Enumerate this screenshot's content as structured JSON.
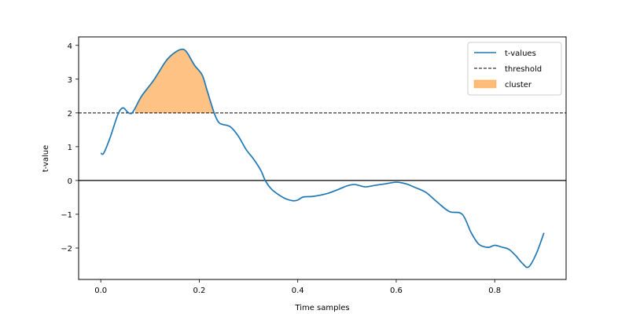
{
  "chart_data": {
    "type": "line",
    "title": "",
    "xlabel": "Time samples",
    "ylabel": "t-value",
    "xlim": [
      -0.045,
      0.945
    ],
    "ylim": [
      -2.93,
      4.25
    ],
    "xticks": [
      0.0,
      0.2,
      0.4,
      0.6,
      0.8
    ],
    "xtick_labels": [
      "0.0",
      "0.2",
      "0.4",
      "0.6",
      "0.8"
    ],
    "yticks": [
      -2,
      -1,
      0,
      1,
      2,
      3,
      4
    ],
    "ytick_labels": [
      "−2",
      "−1",
      "0",
      "1",
      "2",
      "3",
      "4"
    ],
    "grid": false,
    "legend_position": "upper right",
    "series": [
      {
        "name": "t-values",
        "kind": "line",
        "color": "#1f77b4",
        "x": [
          0.0,
          0.006,
          0.019,
          0.035,
          0.045,
          0.054,
          0.062,
          0.069,
          0.083,
          0.107,
          0.131,
          0.146,
          0.163,
          0.174,
          0.19,
          0.206,
          0.216,
          0.23,
          0.239,
          0.247,
          0.263,
          0.279,
          0.295,
          0.311,
          0.325,
          0.334,
          0.345,
          0.358,
          0.374,
          0.39,
          0.4,
          0.411,
          0.432,
          0.459,
          0.48,
          0.5,
          0.516,
          0.537,
          0.558,
          0.578,
          0.6,
          0.62,
          0.637,
          0.66,
          0.684,
          0.708,
          0.734,
          0.752,
          0.768,
          0.787,
          0.8,
          0.816,
          0.829,
          0.843,
          0.856,
          0.869,
          0.885,
          0.9
        ],
        "values": [
          0.81,
          0.81,
          1.27,
          1.96,
          2.15,
          2.03,
          1.98,
          2.12,
          2.5,
          2.96,
          3.51,
          3.74,
          3.88,
          3.81,
          3.42,
          3.12,
          2.66,
          2.01,
          1.73,
          1.66,
          1.59,
          1.32,
          0.92,
          0.62,
          0.3,
          0.0,
          -0.23,
          -0.39,
          -0.53,
          -0.6,
          -0.58,
          -0.49,
          -0.47,
          -0.39,
          -0.28,
          -0.16,
          -0.12,
          -0.19,
          -0.14,
          -0.1,
          -0.05,
          -0.1,
          -0.2,
          -0.35,
          -0.65,
          -0.92,
          -1.0,
          -1.54,
          -1.89,
          -1.98,
          -1.92,
          -1.98,
          -2.04,
          -2.23,
          -2.45,
          -2.56,
          -2.15,
          -1.55
        ]
      },
      {
        "name": "threshold",
        "kind": "hline",
        "style": "dashed",
        "color": "#000000",
        "y": 2.0
      },
      {
        "name": "cluster",
        "kind": "fill_between",
        "color": "#ffbb78",
        "alpha": 0.9,
        "x_range": [
          0.07,
          0.23
        ],
        "baseline": 2.0
      }
    ],
    "reference_lines": [
      {
        "y": 0,
        "style": "solid",
        "color": "#000000"
      }
    ]
  },
  "legend": {
    "items": [
      {
        "label": "t-values",
        "type": "line",
        "color": "#1f77b4"
      },
      {
        "label": "threshold",
        "type": "dashed",
        "color": "#000000"
      },
      {
        "label": "cluster",
        "type": "patch",
        "color": "#ffbb78"
      }
    ]
  }
}
